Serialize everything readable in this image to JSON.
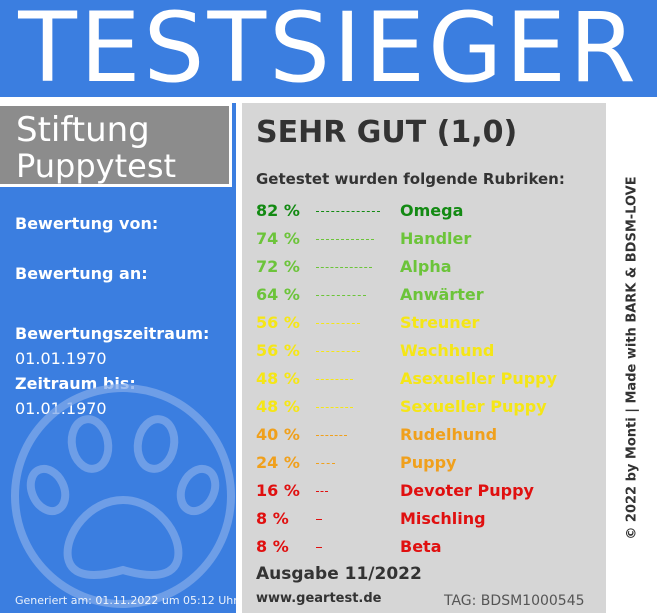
{
  "banner": {
    "title": "TESTSIEGER"
  },
  "brand": {
    "line1": "Stiftung",
    "line2": "Puppytest"
  },
  "info": {
    "bewertung_von_label": "Bewertung von:",
    "bewertung_an_label": "Bewertung an:",
    "zeitraum_label": "Bewertungszeitraum:",
    "zeitraum_value": "01.01.1970",
    "zeitraum_bis_label": "Zeitraum bis:",
    "zeitraum_bis_value": "01.01.1970"
  },
  "generated": "Generiert am: 01.11.2022 um 05:12 Uhr",
  "result": {
    "grade": "SEHR GUT (1,0)",
    "subtitle": "Getestet wurden folgende Rubriken:",
    "rows": [
      {
        "pct": "82 %",
        "name": "Omega",
        "value": 82,
        "color": "#138a13"
      },
      {
        "pct": "74 %",
        "name": "Handler",
        "value": 74,
        "color": "#6cc43a"
      },
      {
        "pct": "72 %",
        "name": "Alpha",
        "value": 72,
        "color": "#6cc43a"
      },
      {
        "pct": "64 %",
        "name": "Anwärter",
        "value": 64,
        "color": "#6cc43a"
      },
      {
        "pct": "56 %",
        "name": "Streuner",
        "value": 56,
        "color": "#f5e616"
      },
      {
        "pct": "56 %",
        "name": "Wachhund",
        "value": 56,
        "color": "#f5e616"
      },
      {
        "pct": "48 %",
        "name": "Asexueller Puppy",
        "value": 48,
        "color": "#f5e616"
      },
      {
        "pct": "48 %",
        "name": "Sexueller Puppy",
        "value": 48,
        "color": "#f5e616"
      },
      {
        "pct": "40 %",
        "name": "Rudelhund",
        "value": 40,
        "color": "#f0a01c"
      },
      {
        "pct": "24 %",
        "name": "Puppy",
        "value": 24,
        "color": "#f0a01c"
      },
      {
        "pct": "16 %",
        "name": "Devoter Puppy",
        "value": 16,
        "color": "#e01010"
      },
      {
        "pct": "8 %",
        "name": "Mischling",
        "value": 8,
        "color": "#e01010"
      },
      {
        "pct": "8 %",
        "name": "Beta",
        "value": 8,
        "color": "#e01010"
      }
    ],
    "ausgabe": "Ausgabe 11/2022",
    "website": "www.geartest.de",
    "tag": "TAG: BDSM1000545"
  },
  "side_text": "© 2022 by Monti | Made with BARK & BDSM-LOVE",
  "icons": {
    "paw": "paw-icon"
  }
}
